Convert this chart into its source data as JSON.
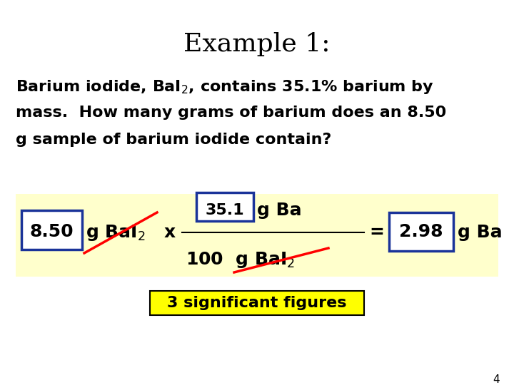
{
  "title": "Example 1:",
  "title_fontsize": 26,
  "body_fontsize": 16,
  "eq_fontsize": 18,
  "eq_num_fontsize": 16,
  "sig_fig_fontsize": 16,
  "yellow_color": "#FFFFCC",
  "sig_fig_yellow": "#FFFF00",
  "blue_border": "#1a3399",
  "sig_fig_text": "3 significant figures",
  "page_number": "4",
  "bg_color": "#FFFFFF",
  "body_line1": "Barium iodide, BaI$_2$, contains 35.1% barium by",
  "body_line2": "mass.  How many grams of barium does an 8.50",
  "body_line3": "g sample of barium iodide contain?"
}
